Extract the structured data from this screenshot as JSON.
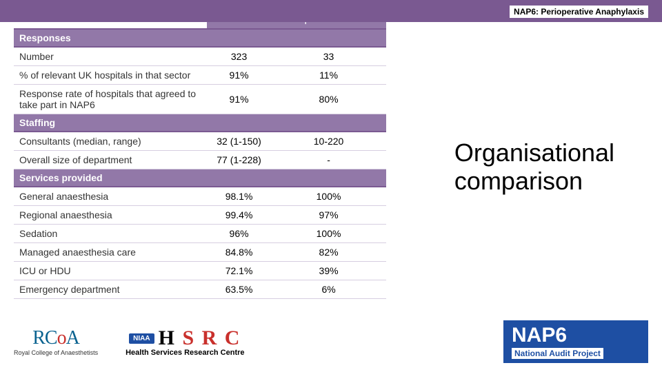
{
  "header": {
    "subtitle": "NAP6: Perioperative Anaphylaxis"
  },
  "side": {
    "title_line1": "Organisational",
    "title_line2": "comparison"
  },
  "table": {
    "columns": [
      "NHS",
      "Independent sector"
    ],
    "sections": [
      {
        "name": "Responses",
        "rows": [
          {
            "label": "Number",
            "nhs": "323",
            "ind": "33"
          },
          {
            "label": "% of relevant UK hospitals in that sector",
            "nhs": "91%",
            "ind": "11%"
          },
          {
            "label": "Response rate of hospitals that agreed to take part in NAP6",
            "nhs": "91%",
            "ind": "80%"
          }
        ]
      },
      {
        "name": "Staffing",
        "rows": [
          {
            "label": "Consultants (median, range)",
            "nhs": "32 (1-150)",
            "ind": "10-220"
          },
          {
            "label": "Overall size of department",
            "nhs": "77 (1-228)",
            "ind": "-"
          }
        ]
      },
      {
        "name": "Services provided",
        "rows": [
          {
            "label": "General anaesthesia",
            "nhs": "98.1%",
            "ind": "100%"
          },
          {
            "label": "Regional anaesthesia",
            "nhs": "99.4%",
            "ind": "97%"
          },
          {
            "label": "Sedation",
            "nhs": "96%",
            "ind": "100%"
          },
          {
            "label": "Managed anaesthesia care",
            "nhs": "84.8%",
            "ind": "82%"
          },
          {
            "label": "ICU or HDU",
            "nhs": "72.1%",
            "ind": "39%"
          },
          {
            "label": "Emergency department",
            "nhs": "63.5%",
            "ind": "6%"
          }
        ]
      }
    ]
  },
  "logos": {
    "rcoa_sub": "Royal College of Anaesthetists",
    "niaa": "NIAA",
    "hsrc_sub": "Health Services Research Centre",
    "nap6_main": "NAP6",
    "nap6_sub": "National Audit Project"
  },
  "colors": {
    "purple_bar": "#7a5991",
    "purple_header": "#9278a8",
    "row_border": "#d6cde0",
    "rcoa_blue": "#0b6390",
    "red": "#c9302c",
    "nap_blue": "#1e4fa3"
  }
}
